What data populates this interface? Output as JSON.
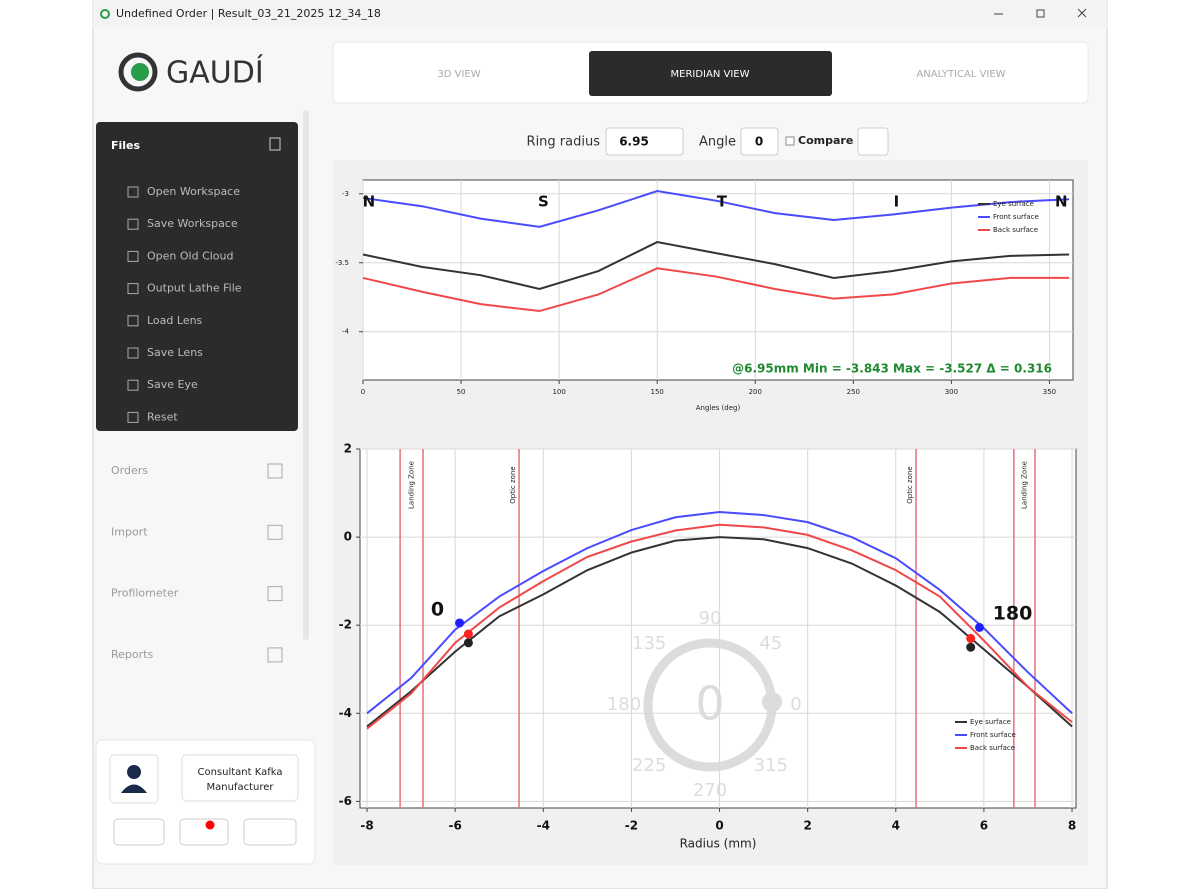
{
  "window": {
    "title": "Undefined Order | Result_03_21_2025 12_34_18"
  },
  "logo": "GAUDÍ",
  "tabs": [
    {
      "label": "3D VIEW",
      "active": false
    },
    {
      "label": "MERIDIAN VIEW",
      "active": true
    },
    {
      "label": "ANALYTICAL VIEW",
      "active": false
    }
  ],
  "controls": {
    "ring_radius_label": "Ring radius",
    "ring_radius": "6.95",
    "angle_label": "Angle",
    "angle": "0",
    "compare_label": "Compare"
  },
  "sidebar": {
    "files_title": "Files",
    "files_items": [
      "Open Workspace",
      "Save Workspace",
      "Open Old Cloud",
      "Output Lathe File",
      "Load Lens",
      "Save Lens",
      "Save Eye",
      "Reset"
    ],
    "nav": [
      "Orders",
      "Import",
      "Profilometer",
      "Reports"
    ]
  },
  "user": {
    "name": "Consultant Kafka",
    "role": "Manufacturer"
  },
  "chart_data": [
    {
      "type": "line",
      "x_label": "Angles (deg)",
      "x": [
        0,
        30,
        60,
        90,
        120,
        150,
        180,
        210,
        240,
        270,
        300,
        330,
        360
      ],
      "xlim": [
        0,
        362
      ],
      "xticks": [
        0,
        50,
        100,
        150,
        200,
        250,
        300,
        350
      ],
      "ylim": [
        -4.35,
        -2.9
      ],
      "yticks": [
        -3,
        -3.5,
        -4
      ],
      "grid": true,
      "legend": "top-right",
      "series": [
        {
          "name": "Eye surface",
          "color": "#333333",
          "values": [
            -3.44,
            -3.53,
            -3.59,
            -3.69,
            -3.56,
            -3.35,
            -3.43,
            -3.51,
            -3.61,
            -3.56,
            -3.49,
            -3.45,
            -3.44
          ]
        },
        {
          "name": "Front surface",
          "color": "#4a4aff",
          "values": [
            -3.03,
            -3.09,
            -3.18,
            -3.24,
            -3.12,
            -2.98,
            -3.05,
            -3.14,
            -3.19,
            -3.15,
            -3.1,
            -3.06,
            -3.04
          ]
        },
        {
          "name": "Back surface",
          "color": "#f04848",
          "values": [
            -3.61,
            -3.71,
            -3.8,
            -3.85,
            -3.73,
            -3.54,
            -3.6,
            -3.69,
            -3.76,
            -3.73,
            -3.65,
            -3.61,
            -3.61
          ]
        }
      ],
      "annotations": [
        {
          "text": "N",
          "x": 3
        },
        {
          "text": "S",
          "x": 92
        },
        {
          "text": "T",
          "x": 183
        },
        {
          "text": "I",
          "x": 272
        },
        {
          "text": "N",
          "x": 356
        }
      ],
      "stats": "@6.95mm  Min = -3.843  Max = -3.527  Δ = 0.316"
    },
    {
      "type": "line",
      "x_label": "Radius (mm)",
      "x": [
        -8,
        -7,
        -6,
        -5,
        -4,
        -3,
        -2,
        -1,
        0,
        1,
        2,
        3,
        4,
        5,
        6,
        7,
        8
      ],
      "xlim": [
        -8.16,
        8.09
      ],
      "xticks": [
        -8,
        -6,
        -4,
        -2,
        0,
        2,
        4,
        6,
        8
      ],
      "ylim": [
        -6.15,
        2
      ],
      "yticks": [
        2,
        0,
        -2,
        -4,
        -6
      ],
      "grid": true,
      "legend": "bottom-right",
      "series": [
        {
          "name": "Eye surface",
          "color": "#333333",
          "values": [
            -4.3,
            -3.5,
            -2.6,
            -1.8,
            -1.3,
            -0.75,
            -0.35,
            -0.08,
            0,
            -0.05,
            -0.25,
            -0.6,
            -1.1,
            -1.7,
            -2.55,
            -3.4,
            -4.3
          ]
        },
        {
          "name": "Front surface",
          "color": "#4a4aff",
          "values": [
            -4,
            -3.2,
            -2.1,
            -1.35,
            -0.77,
            -0.25,
            0.16,
            0.45,
            0.57,
            0.5,
            0.34,
            0,
            -0.48,
            -1.2,
            -2.07,
            -3.07,
            -4
          ]
        },
        {
          "name": "Back surface",
          "color": "#f04848",
          "values": [
            -4.35,
            -3.55,
            -2.4,
            -1.6,
            -1,
            -0.45,
            -0.1,
            0.15,
            0.28,
            0.22,
            0.05,
            -0.3,
            -0.75,
            -1.35,
            -2.35,
            -3.4,
            -4.2
          ]
        }
      ],
      "zones": [
        {
          "x": [
            -7.25,
            -6.73
          ],
          "label": "Landing Zone"
        },
        {
          "x": [
            -4.55
          ],
          "label": "Optic zone"
        },
        {
          "x": [
            4.46
          ],
          "label": "Optic zone"
        },
        {
          "x": [
            6.68,
            7.16
          ],
          "label": "Landing Zone"
        }
      ],
      "zone_color": "#e8707c",
      "points": [
        {
          "x": -5.9,
          "y": -1.95,
          "color": "#2020ff"
        },
        {
          "x": -5.7,
          "y": -2.2,
          "color": "#ff2020"
        },
        {
          "x": -5.7,
          "y": -2.4,
          "color": "#222222"
        },
        {
          "x": 5.9,
          "y": -2.05,
          "color": "#2020ff"
        },
        {
          "x": 5.7,
          "y": -2.3,
          "color": "#ff2020"
        },
        {
          "x": 5.7,
          "y": -2.5,
          "color": "#222222"
        }
      ],
      "annotations": [
        {
          "text": "0",
          "x": -6.4,
          "y": -1.65
        },
        {
          "text": "180",
          "x": 6.65,
          "y": -1.75
        }
      ],
      "dial": {
        "value": 0,
        "labels": [
          90,
          45,
          0,
          315,
          270,
          225,
          180,
          135
        ]
      }
    }
  ]
}
